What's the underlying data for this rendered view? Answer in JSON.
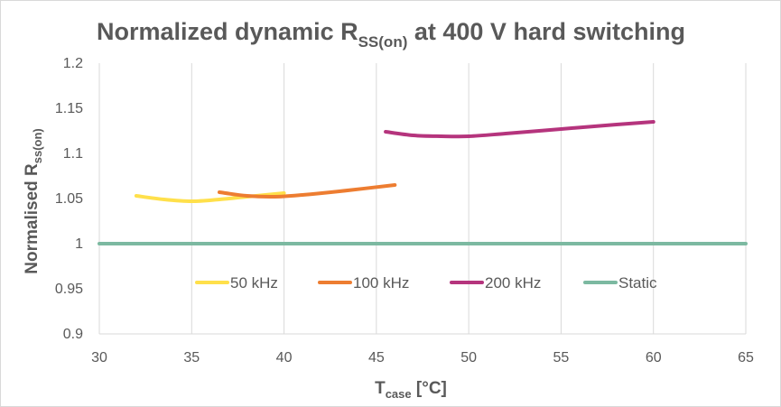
{
  "chart_data": {
    "type": "line",
    "title": {
      "main": "Normalized dynamic R",
      "sub": "SS(on)",
      "rest": " at 400 V hard switching"
    },
    "xlabel": {
      "main": "T",
      "sub": "case",
      "rest": " [°C]"
    },
    "ylabel": {
      "main": "Normalised R",
      "sub": "ss(on)",
      "rest": ""
    },
    "xlim": [
      30,
      65
    ],
    "ylim": [
      0.9,
      1.2
    ],
    "x_ticks": [
      30,
      35,
      40,
      45,
      50,
      55,
      60,
      65
    ],
    "y_ticks": [
      0.9,
      0.95,
      1,
      1.05,
      1.1,
      1.15,
      1.2
    ],
    "y_tick_labels": [
      "0.9",
      "0.95",
      "1",
      "1.05",
      "1.1",
      "1.15",
      "1.2"
    ],
    "grid": "vertical",
    "legend_position": "inside-bottom",
    "series": [
      {
        "name": "50 kHz",
        "color": "#FFE04B",
        "x": [
          32,
          33.5,
          35,
          36.5,
          38,
          40
        ],
        "y": [
          1.053,
          1.049,
          1.047,
          1.049,
          1.052,
          1.056
        ]
      },
      {
        "name": "100 kHz",
        "color": "#ED7D31",
        "x": [
          36.5,
          38,
          39.5,
          41,
          43,
          46
        ],
        "y": [
          1.057,
          1.053,
          1.052,
          1.054,
          1.058,
          1.065
        ]
      },
      {
        "name": "200 kHz",
        "color": "#B5347D",
        "x": [
          45.5,
          47,
          48.5,
          50,
          52,
          55,
          58,
          60
        ],
        "y": [
          1.124,
          1.12,
          1.119,
          1.119,
          1.122,
          1.127,
          1.132,
          1.135
        ]
      },
      {
        "name": "Static",
        "color": "#7CB9A1",
        "x": [
          30,
          65
        ],
        "y": [
          1,
          1
        ]
      }
    ]
  }
}
